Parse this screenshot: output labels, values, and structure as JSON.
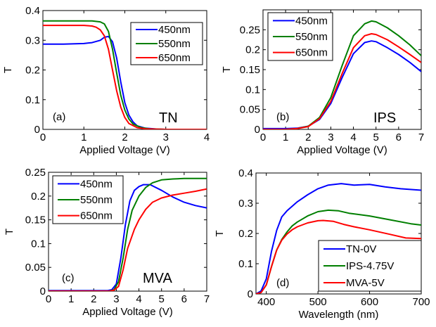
{
  "figure": {
    "colors": {
      "blue": "#0000ff",
      "green": "#007f00",
      "red": "#ff0000"
    }
  },
  "chart_data": [
    {
      "id": "a",
      "type": "line",
      "panel_label": "(a)",
      "mode_label": "TN",
      "xlabel": "Applied Voltage (V)",
      "ylabel": "T",
      "xlim": [
        0,
        4
      ],
      "ylim": [
        0,
        0.4
      ],
      "xticks": [
        0,
        1,
        2,
        3,
        4
      ],
      "yticks": [
        0,
        0.1,
        0.2,
        0.3,
        0.4
      ],
      "ytick_labels": [
        "0",
        "0.1",
        "0.2",
        "0.3",
        "0.4"
      ],
      "legend_position": "top-right",
      "series": [
        {
          "name": "450nm",
          "color": "#0000ff",
          "x": [
            0,
            0.5,
            1.0,
            1.2,
            1.4,
            1.5,
            1.6,
            1.7,
            1.8,
            1.9,
            2.0,
            2.1,
            2.2,
            2.3,
            2.5,
            2.8,
            3.0,
            4.0
          ],
          "y": [
            0.287,
            0.287,
            0.289,
            0.292,
            0.3,
            0.31,
            0.313,
            0.295,
            0.24,
            0.16,
            0.09,
            0.048,
            0.025,
            0.012,
            0.004,
            0.001,
            0.0,
            0.0
          ]
        },
        {
          "name": "550nm",
          "color": "#007f00",
          "x": [
            0,
            0.5,
            1.0,
            1.2,
            1.4,
            1.5,
            1.6,
            1.7,
            1.8,
            1.9,
            2.0,
            2.1,
            2.2,
            2.4,
            2.6,
            3.0,
            4.0
          ],
          "y": [
            0.365,
            0.365,
            0.365,
            0.365,
            0.362,
            0.355,
            0.33,
            0.27,
            0.19,
            0.115,
            0.065,
            0.035,
            0.018,
            0.006,
            0.002,
            0.0,
            0.0
          ]
        },
        {
          "name": "650nm",
          "color": "#ff0000",
          "x": [
            0,
            0.5,
            1.0,
            1.2,
            1.3,
            1.4,
            1.5,
            1.6,
            1.7,
            1.8,
            1.9,
            2.0,
            2.1,
            2.3,
            2.5,
            3.0,
            4.0
          ],
          "y": [
            0.35,
            0.35,
            0.35,
            0.348,
            0.344,
            0.335,
            0.315,
            0.27,
            0.2,
            0.13,
            0.075,
            0.04,
            0.02,
            0.006,
            0.002,
            0.0,
            0.0
          ]
        }
      ]
    },
    {
      "id": "b",
      "type": "line",
      "panel_label": "(b)",
      "mode_label": "IPS",
      "xlabel": "Applied Voltage (V)",
      "ylabel": "T",
      "xlim": [
        0,
        7
      ],
      "ylim": [
        0,
        0.3
      ],
      "xticks": [
        0,
        1,
        2,
        3,
        4,
        5,
        6,
        7
      ],
      "yticks": [
        0,
        0.05,
        0.1,
        0.15,
        0.2,
        0.25
      ],
      "ytick_labels": [
        "0",
        "0.05",
        "0.1",
        "0.15",
        "0.2",
        "0.25"
      ],
      "legend_position": "top-left",
      "series": [
        {
          "name": "450nm",
          "color": "#0000ff",
          "x": [
            0,
            1.0,
            1.5,
            2.0,
            2.5,
            3.0,
            3.5,
            4.0,
            4.5,
            4.8,
            5.0,
            5.5,
            6.0,
            6.5,
            7.0
          ],
          "y": [
            0.002,
            0.002,
            0.003,
            0.008,
            0.025,
            0.065,
            0.13,
            0.19,
            0.218,
            0.222,
            0.22,
            0.205,
            0.188,
            0.168,
            0.145
          ]
        },
        {
          "name": "550nm",
          "color": "#007f00",
          "x": [
            0,
            1.0,
            1.5,
            2.0,
            2.5,
            3.0,
            3.5,
            4.0,
            4.5,
            4.8,
            5.0,
            5.5,
            6.0,
            6.5,
            7.0
          ],
          "y": [
            0.0,
            0.0,
            0.002,
            0.008,
            0.03,
            0.08,
            0.16,
            0.235,
            0.265,
            0.272,
            0.27,
            0.255,
            0.235,
            0.212,
            0.185
          ]
        },
        {
          "name": "650nm",
          "color": "#ff0000",
          "x": [
            0,
            1.0,
            1.5,
            2.0,
            2.5,
            3.0,
            3.5,
            4.0,
            4.5,
            4.8,
            5.0,
            5.5,
            6.0,
            6.5,
            7.0
          ],
          "y": [
            0.0,
            0.0,
            0.002,
            0.007,
            0.027,
            0.07,
            0.14,
            0.205,
            0.235,
            0.24,
            0.238,
            0.225,
            0.207,
            0.188,
            0.168
          ]
        }
      ]
    },
    {
      "id": "c",
      "type": "line",
      "panel_label": "(c)",
      "mode_label": "MVA",
      "xlabel": "Applied Voltage (V)",
      "ylabel": "T",
      "xlim": [
        0,
        7
      ],
      "ylim": [
        0,
        0.25
      ],
      "xticks": [
        0,
        1,
        2,
        3,
        4,
        5,
        6,
        7
      ],
      "yticks": [
        0,
        0.05,
        0.1,
        0.15,
        0.2,
        0.25
      ],
      "ytick_labels": [
        "0",
        "0.05",
        "0.1",
        "0.15",
        "0.2",
        "0.25"
      ],
      "legend_position": "top-left",
      "series": [
        {
          "name": "450nm",
          "color": "#0000ff",
          "x": [
            0,
            2.6,
            2.8,
            3.0,
            3.2,
            3.4,
            3.6,
            3.8,
            4.0,
            4.2,
            4.5,
            5.0,
            5.5,
            6.0,
            6.5,
            7.0
          ],
          "y": [
            0.001,
            0.001,
            0.003,
            0.015,
            0.07,
            0.14,
            0.19,
            0.212,
            0.22,
            0.224,
            0.224,
            0.212,
            0.198,
            0.187,
            0.18,
            0.175
          ]
        },
        {
          "name": "550nm",
          "color": "#007f00",
          "x": [
            0,
            2.7,
            2.9,
            3.1,
            3.3,
            3.5,
            3.7,
            4.0,
            4.3,
            4.6,
            5.0,
            5.5,
            6.0,
            7.0
          ],
          "y": [
            0.0,
            0.0,
            0.003,
            0.02,
            0.07,
            0.13,
            0.17,
            0.2,
            0.218,
            0.228,
            0.234,
            0.236,
            0.237,
            0.237
          ]
        },
        {
          "name": "650nm",
          "color": "#ff0000",
          "x": [
            0,
            2.7,
            2.9,
            3.1,
            3.3,
            3.5,
            3.8,
            4.0,
            4.3,
            4.6,
            5.0,
            5.5,
            6.0,
            6.5,
            7.0
          ],
          "y": [
            0.0,
            0.0,
            0.002,
            0.01,
            0.045,
            0.09,
            0.13,
            0.15,
            0.172,
            0.187,
            0.196,
            0.202,
            0.206,
            0.21,
            0.215
          ]
        }
      ]
    },
    {
      "id": "d",
      "type": "line",
      "panel_label": "(d)",
      "mode_label": "",
      "xlabel": "Wavelength (nm)",
      "ylabel": "T",
      "xlim": [
        380,
        700
      ],
      "ylim": [
        0,
        0.4
      ],
      "xticks": [
        400,
        500,
        600,
        700
      ],
      "yticks": [
        0,
        0.1,
        0.2,
        0.3,
        0.4
      ],
      "ytick_labels": [
        "0",
        "0.1",
        "0.2",
        "0.3",
        "0.4"
      ],
      "legend_position": "bottom-right",
      "series": [
        {
          "name": "TN-0V",
          "color": "#0000ff",
          "x": [
            380,
            390,
            400,
            410,
            420,
            430,
            440,
            460,
            480,
            500,
            520,
            545,
            570,
            600,
            630,
            660,
            700
          ],
          "y": [
            0.0,
            0.01,
            0.05,
            0.14,
            0.21,
            0.255,
            0.275,
            0.305,
            0.328,
            0.348,
            0.36,
            0.365,
            0.36,
            0.362,
            0.354,
            0.348,
            0.343
          ]
        },
        {
          "name": "IPS-4.75V",
          "color": "#007f00",
          "x": [
            380,
            390,
            400,
            410,
            420,
            430,
            440,
            450,
            460,
            480,
            500,
            520,
            540,
            560,
            600,
            640,
            680,
            700
          ],
          "y": [
            0.0,
            0.005,
            0.03,
            0.09,
            0.145,
            0.18,
            0.205,
            0.225,
            0.238,
            0.258,
            0.272,
            0.277,
            0.275,
            0.267,
            0.258,
            0.245,
            0.232,
            0.228
          ]
        },
        {
          "name": "MVA-5V",
          "color": "#ff0000",
          "x": [
            380,
            390,
            400,
            410,
            420,
            430,
            440,
            450,
            460,
            480,
            500,
            510,
            530,
            550,
            570,
            600,
            640,
            670,
            700
          ],
          "y": [
            0.0,
            0.005,
            0.03,
            0.09,
            0.145,
            0.178,
            0.198,
            0.212,
            0.222,
            0.235,
            0.242,
            0.243,
            0.24,
            0.23,
            0.222,
            0.212,
            0.197,
            0.185,
            0.183
          ]
        }
      ]
    }
  ]
}
